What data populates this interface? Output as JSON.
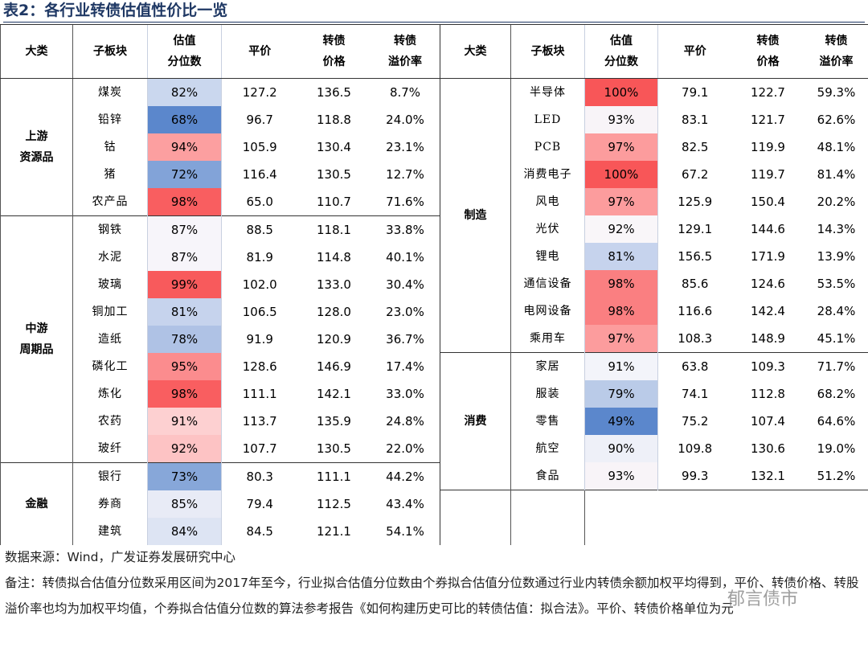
{
  "title": "表2：各行业转债估值性价比一览",
  "headers": [
    [
      "大类"
    ],
    [
      "子板块"
    ],
    [
      "估值",
      "分位数"
    ],
    [
      "平价"
    ],
    [
      "转债",
      "价格"
    ],
    [
      "转债",
      "溢价率"
    ]
  ],
  "left": [
    {
      "category": [
        "上游",
        "资源品"
      ],
      "rows": [
        [
          "煤炭",
          "82%",
          "127.2",
          "136.5",
          "8.7%"
        ],
        [
          "铅锌",
          "68%",
          "96.7",
          "118.8",
          "24.0%"
        ],
        [
          "钴",
          "94%",
          "105.9",
          "130.4",
          "23.1%"
        ],
        [
          "猪",
          "72%",
          "116.4",
          "130.5",
          "12.7%"
        ],
        [
          "农产品",
          "98%",
          "65.0",
          "110.7",
          "71.6%"
        ]
      ],
      "colors": [
        "#cad7ee",
        "#5b87cc",
        "#fc9fa0",
        "#82a3d8",
        "#f95e60"
      ]
    },
    {
      "category": [
        "中游",
        "周期品"
      ],
      "rows": [
        [
          "钢铁",
          "87%",
          "88.5",
          "118.1",
          "33.8%"
        ],
        [
          "水泥",
          "87%",
          "81.9",
          "114.8",
          "40.1%"
        ],
        [
          "玻璃",
          "99%",
          "102.0",
          "133.0",
          "30.4%"
        ],
        [
          "铜加工",
          "81%",
          "106.5",
          "128.0",
          "23.0%"
        ],
        [
          "造纸",
          "78%",
          "91.9",
          "120.9",
          "36.7%"
        ],
        [
          "磷化工",
          "95%",
          "128.6",
          "146.9",
          "17.4%"
        ],
        [
          "炼化",
          "98%",
          "111.1",
          "142.1",
          "33.0%"
        ],
        [
          "农药",
          "91%",
          "113.7",
          "135.9",
          "24.8%"
        ],
        [
          "玻纤",
          "92%",
          "107.7",
          "130.5",
          "22.0%"
        ]
      ],
      "colors": [
        "#f7f5fa",
        "#f7f5fa",
        "#f85a5c",
        "#c6d3ed",
        "#afc2e5",
        "#fb8c8e",
        "#f95e60",
        "#fdd0d1",
        "#fdc3c4"
      ]
    },
    {
      "category": [
        "金融"
      ],
      "rows": [
        [
          "银行",
          "73%",
          "80.3",
          "111.1",
          "44.2%"
        ],
        [
          "券商",
          "85%",
          "79.4",
          "112.5",
          "43.4%"
        ],
        [
          "建筑",
          "84%",
          "84.5",
          "121.1",
          "54.1%"
        ]
      ],
      "colors": [
        "#87a7d9",
        "#e8ebf6",
        "#dde4f3"
      ]
    }
  ],
  "right": [
    {
      "category": [
        "制造"
      ],
      "rows": [
        [
          "半导体",
          "100%",
          "79.1",
          "122.7",
          "59.3%"
        ],
        [
          "LED",
          "93%",
          "83.1",
          "121.7",
          "62.6%"
        ],
        [
          "PCB",
          "97%",
          "82.5",
          "119.9",
          "48.1%"
        ],
        [
          "消费电子",
          "100%",
          "67.2",
          "119.7",
          "81.4%"
        ],
        [
          "风电",
          "97%",
          "125.9",
          "150.4",
          "20.2%"
        ],
        [
          "光伏",
          "92%",
          "129.1",
          "144.6",
          "14.3%"
        ],
        [
          "锂电",
          "81%",
          "156.5",
          "171.9",
          "13.9%"
        ],
        [
          "通信设备",
          "98%",
          "85.6",
          "124.6",
          "53.5%"
        ],
        [
          "电网设备",
          "98%",
          "116.6",
          "142.4",
          "28.4%"
        ],
        [
          "乘用车",
          "97%",
          "108.3",
          "148.9",
          "45.1%"
        ]
      ],
      "colors": [
        "#f85658",
        "#f8f4f8",
        "#fc9c9d",
        "#f85658",
        "#fc9c9d",
        "#f9f6f9",
        "#c6d3ed",
        "#fa7f81",
        "#fa7f81",
        "#fc9c9d"
      ]
    },
    {
      "category": [
        "消费"
      ],
      "rows": [
        [
          "家居",
          "91%",
          "63.8",
          "109.3",
          "71.7%"
        ],
        [
          "服装",
          "79%",
          "74.1",
          "112.8",
          "68.2%"
        ],
        [
          "零售",
          "49%",
          "75.2",
          "107.4",
          "64.6%"
        ],
        [
          "航空",
          "90%",
          "109.8",
          "130.6",
          "19.0%"
        ],
        [
          "食品",
          "93%",
          "99.3",
          "132.1",
          "51.2%"
        ]
      ],
      "colors": [
        "#f3f4fa",
        "#bacbe8",
        "#5b87cc",
        "#eef0f8",
        "#f8f4f8"
      ]
    }
  ],
  "source": "数据来源：Wind，广发证券发展研究中心",
  "note": "备注：转债拟合估值分位数采用区间为2017年至今，行业拟合估值分位数由个券拟合估值分位数通过行业内转债余额加权平均得到，平价、转债价格、转股溢价率也均为加权平均值，个券拟合估值分位数的算法参考报告《如何构建历史可比的转债估值：拟合法》。平价、转债价格单位为元",
  "watermark": "郁言债市"
}
